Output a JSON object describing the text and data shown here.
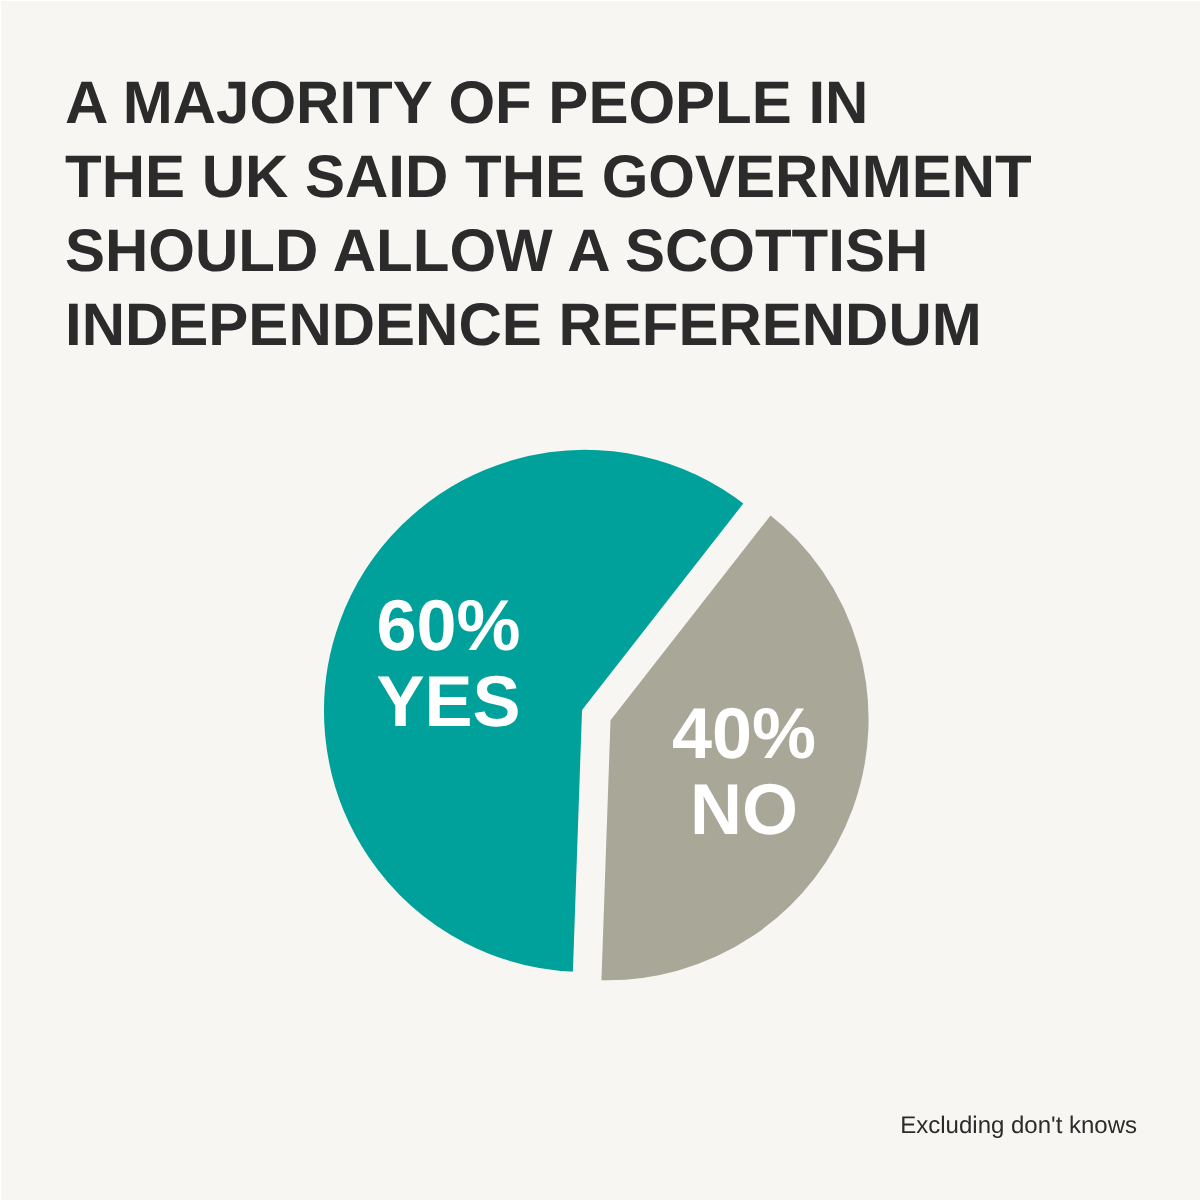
{
  "chart_data": {
    "type": "pie",
    "title": "A MAJORITY OF PEOPLE IN THE UK SAID THE GOVERNMENT SHOULD ALLOW A SCOTTISH INDEPENDENCE REFERENDUM",
    "categories": [
      "YES",
      "NO"
    ],
    "values": [
      60,
      40
    ],
    "colors": [
      "#00a19a",
      "#a9a797"
    ],
    "value_labels": [
      "60%",
      "40%"
    ],
    "annotations": [
      "Excluding don't knows"
    ]
  }
}
